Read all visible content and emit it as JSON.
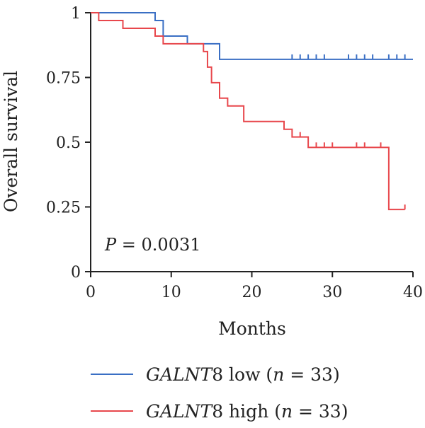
{
  "chart_data": {
    "type": "line",
    "subtype": "kaplan-meier",
    "title": "",
    "xlabel": "Months",
    "ylabel": "Overall survival",
    "xlim": [
      0,
      40
    ],
    "ylim": [
      0,
      1
    ],
    "x_ticks": [
      0,
      10,
      20,
      30,
      40
    ],
    "x_tick_labels": [
      "0",
      "10",
      "20",
      "30",
      "40"
    ],
    "y_ticks": [
      0,
      0.25,
      0.5,
      0.75,
      1
    ],
    "y_tick_labels": [
      "0",
      "0.25",
      "0.5",
      "0.75",
      "1"
    ],
    "grid": false,
    "legend_position": "bottom",
    "annotation": {
      "p_symbol": "P",
      "p_rest": " = 0.0031"
    },
    "series": [
      {
        "name": "low",
        "legend": {
          "gene": "GALNT",
          "gene_num": "8",
          "group": " low (",
          "n_symbol": "n",
          "n_rest": " = 33)"
        },
        "color": "#3a6fc4",
        "steps": [
          [
            0,
            1
          ],
          [
            8,
            0.97
          ],
          [
            9,
            0.91
          ],
          [
            12,
            0.88
          ],
          [
            16,
            0.82
          ],
          [
            40,
            0.82
          ]
        ],
        "censored": [
          [
            25,
            0.82
          ],
          [
            26,
            0.82
          ],
          [
            27,
            0.82
          ],
          [
            28,
            0.82
          ],
          [
            29,
            0.82
          ],
          [
            32,
            0.82
          ],
          [
            33,
            0.82
          ],
          [
            34,
            0.82
          ],
          [
            35,
            0.82
          ],
          [
            37,
            0.82
          ],
          [
            38,
            0.82
          ],
          [
            39,
            0.82
          ]
        ]
      },
      {
        "name": "high",
        "legend": {
          "gene": "GALNT",
          "gene_num": "8",
          "group": " high (",
          "n_symbol": "n",
          "n_rest": " = 33)"
        },
        "color": "#e8474c",
        "steps": [
          [
            0,
            1
          ],
          [
            1,
            0.97
          ],
          [
            4,
            0.94
          ],
          [
            8,
            0.91
          ],
          [
            9,
            0.88
          ],
          [
            12,
            0.88
          ],
          [
            14,
            0.85
          ],
          [
            14.5,
            0.79
          ],
          [
            15,
            0.73
          ],
          [
            16,
            0.67
          ],
          [
            17,
            0.64
          ],
          [
            19,
            0.58
          ],
          [
            24,
            0.55
          ],
          [
            25,
            0.52
          ],
          [
            27,
            0.48
          ],
          [
            37,
            0.24
          ],
          [
            39,
            0.24
          ]
        ],
        "censored": [
          [
            26,
            0.52
          ],
          [
            28,
            0.48
          ],
          [
            29,
            0.48
          ],
          [
            30,
            0.48
          ],
          [
            33,
            0.48
          ],
          [
            34,
            0.48
          ],
          [
            36,
            0.48
          ],
          [
            39,
            0.24
          ]
        ]
      }
    ]
  }
}
